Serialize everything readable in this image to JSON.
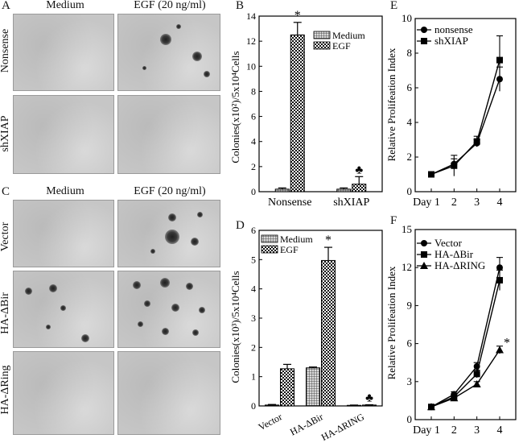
{
  "panel_labels": {
    "a": "A",
    "b": "B",
    "c": "C",
    "d": "D",
    "e": "E",
    "f": "F"
  },
  "micrographs": {
    "top": {
      "col_headers": [
        "Medium",
        "EGF (20 ng/ml)"
      ],
      "row_labels": [
        "Nonsense",
        "shXIAP"
      ]
    },
    "bottom": {
      "col_headers": [
        "Medium",
        "EGF (20 ng/ml)"
      ],
      "row_labels": [
        "Vector",
        "HA-ΔBir",
        "HA-ΔRing"
      ]
    }
  },
  "chart_data": [
    {
      "id": "B",
      "type": "bar",
      "ylabel": "Colonies(x10²)/5x10⁴Cells",
      "ylim": [
        0,
        14
      ],
      "yticks": [
        0,
        2,
        4,
        6,
        8,
        10,
        12,
        14
      ],
      "categories": [
        "Nonsense",
        "shXIAP"
      ],
      "series": [
        {
          "name": "Medium",
          "values": [
            0.2,
            0.2
          ],
          "errors": [
            0.1,
            0.1
          ]
        },
        {
          "name": "EGF",
          "values": [
            12.5,
            0.6
          ],
          "errors": [
            1.0,
            0.6
          ]
        }
      ],
      "annotations": [
        {
          "category": "Nonsense",
          "series": "EGF",
          "text": "*"
        },
        {
          "category": "shXIAP",
          "series": "EGF",
          "text": "♣"
        }
      ],
      "legend": "top-right"
    },
    {
      "id": "D",
      "type": "bar",
      "ylabel": "Colonies(x10³)/5x10⁴Cells",
      "ylim": [
        0,
        6
      ],
      "yticks": [
        0,
        1,
        2,
        3,
        4,
        5,
        6
      ],
      "categories": [
        "Vector",
        "HA-ΔBir",
        "HA-ΔRING"
      ],
      "series": [
        {
          "name": "Medium",
          "values": [
            0.03,
            1.3,
            0.02
          ],
          "errors": [
            0.02,
            0.03,
            0.01
          ]
        },
        {
          "name": "EGF",
          "values": [
            1.27,
            4.97,
            0.03
          ],
          "errors": [
            0.15,
            0.45,
            0.01
          ]
        }
      ],
      "annotations": [
        {
          "category": "HA-ΔBir",
          "series": "EGF",
          "text": "*"
        },
        {
          "category": "HA-ΔRING",
          "series": "EGF",
          "text": "♣"
        }
      ],
      "legend": "top-left"
    },
    {
      "id": "E",
      "type": "line",
      "ylabel": "Relative Prolifeation Index",
      "ylim": [
        0,
        10
      ],
      "yticks": [
        0,
        2,
        4,
        6,
        8,
        10
      ],
      "x": [
        "Day 1",
        "2",
        "3",
        "4"
      ],
      "series": [
        {
          "name": "nonsense",
          "marker": "circle",
          "values": [
            1.0,
            1.6,
            2.8,
            6.5
          ],
          "errors": [
            0.1,
            0.3,
            0.2,
            0.7
          ]
        },
        {
          "name": "shXIAP",
          "marker": "square",
          "values": [
            1.0,
            1.5,
            2.9,
            7.6
          ],
          "errors": [
            0.1,
            0.6,
            0.3,
            1.4
          ]
        }
      ],
      "legend": "top-left"
    },
    {
      "id": "F",
      "type": "line",
      "ylabel": "Relative Prolifeation Index",
      "ylim": [
        0,
        15
      ],
      "yticks": [
        0,
        3,
        6,
        9,
        12,
        15
      ],
      "x": [
        "Day 1",
        "2",
        "3",
        "4"
      ],
      "series": [
        {
          "name": "Vector",
          "marker": "circle",
          "values": [
            1.0,
            2.0,
            4.2,
            12.0
          ],
          "errors": [
            0.1,
            0.2,
            0.3,
            0.8
          ]
        },
        {
          "name": "HA-ΔBir",
          "marker": "square",
          "values": [
            1.0,
            1.8,
            3.6,
            11.0
          ],
          "errors": [
            0.1,
            0.2,
            0.3,
            0.8
          ]
        },
        {
          "name": "HA-ΔRING",
          "marker": "triangle",
          "values": [
            1.0,
            1.7,
            2.8,
            5.5
          ],
          "errors": [
            0.1,
            0.1,
            0.2,
            0.3
          ]
        }
      ],
      "annotations": [
        {
          "series": "HA-ΔRING",
          "x": "4",
          "text": "*"
        }
      ],
      "legend": "top-left"
    }
  ]
}
